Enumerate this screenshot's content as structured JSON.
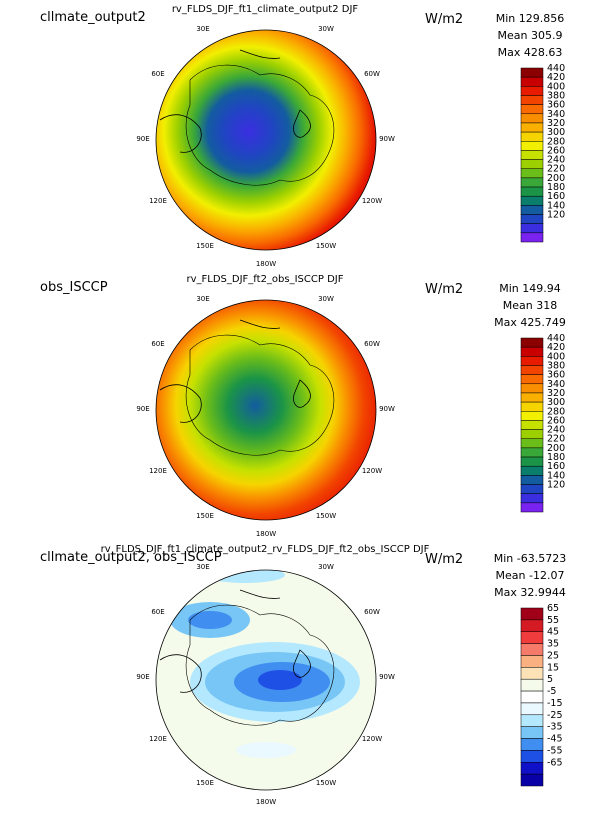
{
  "panels": [
    {
      "left_title": "cllmate_output2",
      "center_title": "rv_FLDS_DJF_ft1_climate_output2  DJF",
      "units": "W/m2",
      "stats": [
        "Min 129.856",
        "Mean 305.9",
        "Max 428.63"
      ],
      "colorbar": {
        "labels": [
          "440",
          "420",
          "400",
          "380",
          "360",
          "340",
          "320",
          "300",
          "280",
          "260",
          "240",
          "220",
          "200",
          "180",
          "160",
          "140",
          "120"
        ],
        "colors": [
          "#8b0000",
          "#c80000",
          "#e81a00",
          "#f24400",
          "#f96b00",
          "#f98f00",
          "#fab000",
          "#f6d400",
          "#f2ef00",
          "#c6e100",
          "#9cd000",
          "#6bbd19",
          "#3aa838",
          "#1b9447",
          "#0a7d6c",
          "#135ca0",
          "#2045c2",
          "#3a2ee0",
          "#7a22f0"
        ],
        "scale": "sequential"
      },
      "meridian_labels": {
        "top_left": "30E",
        "top_right": "30W",
        "upper_left": "60E",
        "upper_right": "60W",
        "mid_left": "90E",
        "mid_right": "90W",
        "lower_left": "120E",
        "lower_right": "120W",
        "bottom_left": "150E",
        "bottom_right": "150W",
        "bottom": "180W"
      }
    },
    {
      "left_title": "obs_ISCCP",
      "center_title": "rv_FLDS_DJF_ft2_obs_ISCCP  DJF",
      "units": "W/m2",
      "stats": [
        "Min 149.94",
        "Mean 318",
        "Max 425.749"
      ],
      "colorbar": {
        "labels": [
          "440",
          "420",
          "400",
          "380",
          "360",
          "340",
          "320",
          "300",
          "280",
          "260",
          "240",
          "220",
          "200",
          "180",
          "160",
          "140",
          "120"
        ],
        "colors": [
          "#8b0000",
          "#c80000",
          "#e81a00",
          "#f24400",
          "#f96b00",
          "#f98f00",
          "#fab000",
          "#f6d400",
          "#f2ef00",
          "#c6e100",
          "#9cd000",
          "#6bbd19",
          "#3aa838",
          "#1b9447",
          "#0a7d6c",
          "#135ca0",
          "#2045c2",
          "#3a2ee0",
          "#7a22f0"
        ],
        "scale": "sequential"
      },
      "meridian_labels": {
        "top_left": "30E",
        "top_right": "30W",
        "upper_left": "60E",
        "upper_right": "60W",
        "mid_left": "90E",
        "mid_right": "90W",
        "lower_left": "120E",
        "lower_right": "120W",
        "bottom_left": "150E",
        "bottom_right": "150W",
        "bottom": "180W"
      }
    },
    {
      "left_title": "cllmate_output2, obs_ISCCP",
      "center_title": "rv_FLDS_DJF_ft1_climate_output2_rv_FLDS_DJF_ft2_obs_ISCCP  DJF",
      "units": "W/m2",
      "stats": [
        "Min -63.5723",
        "Mean -12.07",
        "Max 32.9944"
      ],
      "colorbar": {
        "labels": [
          "65",
          "55",
          "45",
          "35",
          "25",
          "15",
          "5",
          "-5",
          "-15",
          "-25",
          "-35",
          "-45",
          "-55",
          "-65"
        ],
        "colors": [
          "#a00018",
          "#d41a22",
          "#f03c3c",
          "#f57a6a",
          "#fab080",
          "#fde2b8",
          "#f4fbea",
          "#ffffff",
          "#eaf8ff",
          "#b4e8ff",
          "#78c6f5",
          "#3f8ef0",
          "#1f50e6",
          "#1010c8",
          "#0a00a8"
        ],
        "scale": "diverging"
      },
      "meridian_labels": {
        "top_left": "30E",
        "top_right": "30W",
        "upper_left": "60E",
        "upper_right": "60W",
        "mid_left": "90E",
        "mid_right": "90W",
        "lower_left": "120E",
        "lower_right": "120W",
        "bottom_left": "150E",
        "bottom_right": "150W",
        "bottom": "180W"
      }
    }
  ],
  "chart_data": [
    {
      "type": "heatmap",
      "title": "rv_FLDS_DJF_ft1_climate_output2  DJF",
      "projection": "polar stereographic (north pole)",
      "units": "W/m2",
      "min": 129.856,
      "mean": 305.9,
      "max": 428.63,
      "levels": [
        120,
        140,
        160,
        180,
        200,
        220,
        240,
        260,
        280,
        300,
        320,
        340,
        360,
        380,
        400,
        420,
        440
      ]
    },
    {
      "type": "heatmap",
      "title": "rv_FLDS_DJF_ft2_obs_ISCCP  DJF",
      "projection": "polar stereographic (north pole)",
      "units": "W/m2",
      "min": 149.94,
      "mean": 318,
      "max": 425.749,
      "levels": [
        120,
        140,
        160,
        180,
        200,
        220,
        240,
        260,
        280,
        300,
        320,
        340,
        360,
        380,
        400,
        420,
        440
      ]
    },
    {
      "type": "heatmap",
      "title": "rv_FLDS_DJF_ft1_climate_output2_rv_FLDS_DJF_ft2_obs_ISCCP  DJF",
      "projection": "polar stereographic (north pole)",
      "units": "W/m2",
      "min": -63.5723,
      "mean": -12.07,
      "max": 32.9944,
      "levels": [
        -65,
        -55,
        -45,
        -35,
        -25,
        -15,
        -5,
        5,
        15,
        25,
        35,
        45,
        55,
        65
      ]
    }
  ]
}
